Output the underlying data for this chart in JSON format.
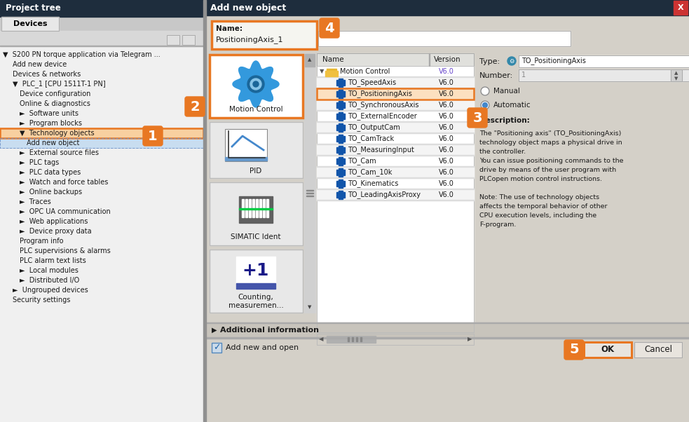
{
  "fig_width": 9.83,
  "fig_height": 6.02,
  "bg_color": "#c8c8c8",
  "dark_header": "#1e2d3d",
  "orange": "#e87722",
  "left_panel_bg": "#f0f0f0",
  "dialog_bg": "#d4d0c8",
  "tree_items": [
    {
      "name": "Motion Control",
      "version": "V6.0",
      "type": "folder",
      "indent": 0,
      "selected": false
    },
    {
      "name": "TO_SpeedAxis",
      "version": "V6.0",
      "type": "item",
      "indent": 1,
      "selected": false
    },
    {
      "name": "TO_PositioningAxis",
      "version": "V6.0",
      "type": "item",
      "indent": 1,
      "selected": true
    },
    {
      "name": "TO_SynchronousAxis",
      "version": "V6.0",
      "type": "item",
      "indent": 1,
      "selected": false
    },
    {
      "name": "TO_ExternalEncoder",
      "version": "V6.0",
      "type": "item",
      "indent": 1,
      "selected": false
    },
    {
      "name": "TO_OutputCam",
      "version": "V6.0",
      "type": "item",
      "indent": 1,
      "selected": false
    },
    {
      "name": "TO_CamTrack",
      "version": "V6.0",
      "type": "item",
      "indent": 1,
      "selected": false
    },
    {
      "name": "TO_MeasuringInput",
      "version": "V6.0",
      "type": "item",
      "indent": 1,
      "selected": false
    },
    {
      "name": "TO_Cam",
      "version": "V6.0",
      "type": "item",
      "indent": 1,
      "selected": false
    },
    {
      "name": "TO_Cam_10k",
      "version": "V6.0",
      "type": "item",
      "indent": 1,
      "selected": false
    },
    {
      "name": "TO_Kinematics",
      "version": "V6.0",
      "type": "item",
      "indent": 1,
      "selected": false
    },
    {
      "name": "TO_LeadingAxisProxy",
      "version": "V6.0",
      "type": "item",
      "indent": 1,
      "selected": false
    }
  ],
  "description_lines": [
    "The \"Positioning axis\" (TO_PositioningAxis)",
    "technology object maps a physical drive in",
    "the controller.",
    "You can issue positioning commands to the",
    "drive by means of the user program with",
    "PLCopen motion control instructions.",
    "",
    "Note: The use of technology objects",
    "affects the temporal behavior of other",
    "CPU execution levels, including the",
    "F-program."
  ],
  "type_label": "TO_PositioningAxis",
  "name_field": "PositioningAxis_1",
  "left_tree_items": [
    {
      "text": "S200 PN torque application via Telegram ...",
      "indent": 4,
      "prefix": "▼  "
    },
    {
      "text": "Add new device",
      "indent": 18,
      "prefix": ""
    },
    {
      "text": "Devices & networks",
      "indent": 18,
      "prefix": ""
    },
    {
      "text": "PLC_1 [CPU 1511T-1 PN]",
      "indent": 18,
      "prefix": "▼  "
    },
    {
      "text": "Device configuration",
      "indent": 28,
      "prefix": ""
    },
    {
      "text": "Online & diagnostics",
      "indent": 28,
      "prefix": ""
    },
    {
      "text": "Software units",
      "indent": 28,
      "prefix": "►  "
    },
    {
      "text": "Program blocks",
      "indent": 28,
      "prefix": "►  "
    },
    {
      "text": "Technology objects",
      "indent": 28,
      "prefix": "▼  ",
      "highlight_orange": true
    },
    {
      "text": "Add new object",
      "indent": 38,
      "prefix": "",
      "highlight_blue": true
    },
    {
      "text": "External source files",
      "indent": 28,
      "prefix": "►  "
    },
    {
      "text": "PLC tags",
      "indent": 28,
      "prefix": "►  "
    },
    {
      "text": "PLC data types",
      "indent": 28,
      "prefix": "►  "
    },
    {
      "text": "Watch and force tables",
      "indent": 28,
      "prefix": "►  "
    },
    {
      "text": "Online backups",
      "indent": 28,
      "prefix": "►  "
    },
    {
      "text": "Traces",
      "indent": 28,
      "prefix": "►  "
    },
    {
      "text": "OPC UA communication",
      "indent": 28,
      "prefix": "►  "
    },
    {
      "text": "Web applications",
      "indent": 28,
      "prefix": "►  "
    },
    {
      "text": "Device proxy data",
      "indent": 28,
      "prefix": "►  "
    },
    {
      "text": "Program info",
      "indent": 28,
      "prefix": ""
    },
    {
      "text": "PLC supervisions & alarms",
      "indent": 28,
      "prefix": ""
    },
    {
      "text": "PLC alarm text lists",
      "indent": 28,
      "prefix": ""
    },
    {
      "text": "Local modules",
      "indent": 28,
      "prefix": "►  "
    },
    {
      "text": "Distributed I/O",
      "indent": 28,
      "prefix": "►  "
    },
    {
      "text": "Ungrouped devices",
      "indent": 18,
      "prefix": "►  "
    },
    {
      "text": "Security settings",
      "indent": 18,
      "prefix": ""
    }
  ]
}
